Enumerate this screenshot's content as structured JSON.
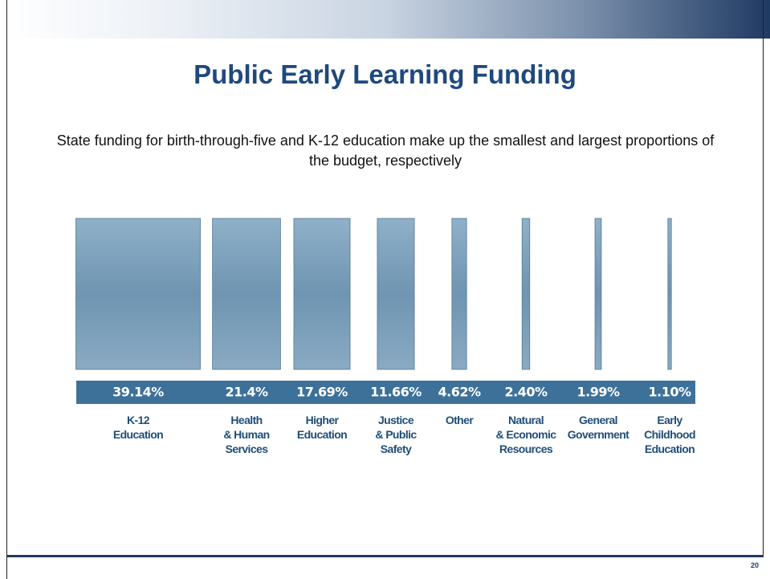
{
  "chart_data": {
    "type": "bar",
    "title": "Public Early Learning Funding",
    "subtitle": "State funding for birth-through-five and K-12 education make up the smallest and largest proportions of the budget, respectively",
    "categories": [
      "K-12\nEducation",
      "Health\n& Human\nServices",
      "Higher\nEducation",
      "Justice\n& Public\nSafety",
      "Other",
      "Natural\n& Economic\nResources",
      "General\nGovernment",
      "Early\nChildhood\nEducation"
    ],
    "values": [
      39.14,
      21.4,
      17.69,
      11.66,
      4.62,
      2.4,
      1.99,
      1.1
    ],
    "value_labels": [
      "39.14%",
      "21.4%",
      "17.69%",
      "11.66%",
      "4.62%",
      "2.40%",
      "1.99%",
      "1.10%"
    ],
    "color": "#6f95b2"
  },
  "page_number": "20"
}
